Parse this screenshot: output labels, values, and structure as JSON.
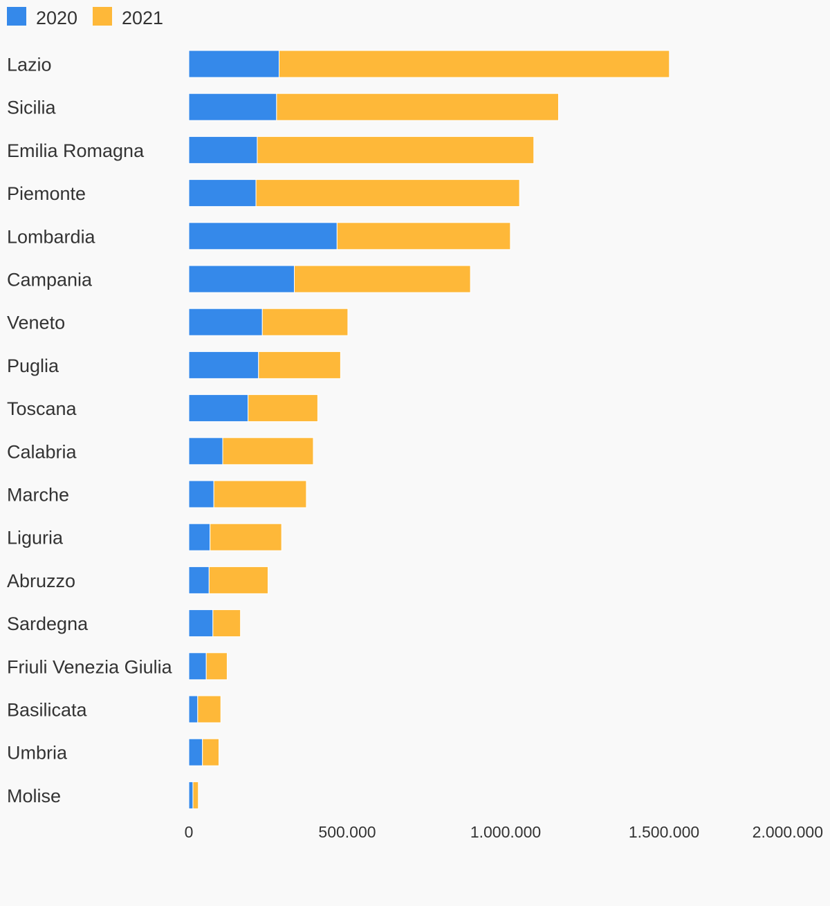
{
  "chart_data": {
    "type": "bar",
    "orientation": "horizontal",
    "stacked": true,
    "title": "",
    "xlabel": "",
    "ylabel": "",
    "legend_position": "top-left",
    "grid": false,
    "xlim": [
      0,
      2000000
    ],
    "ticks": [
      {
        "value": 0,
        "label": "0"
      },
      {
        "value": 500000,
        "label": "500.000"
      },
      {
        "value": 1000000,
        "label": "1.000.000"
      },
      {
        "value": 1500000,
        "label": "1.500.000"
      },
      {
        "value": 2000000,
        "label": "2.000.000"
      }
    ],
    "categories": [
      "Lazio",
      "Sicilia",
      "Emilia Romagna",
      "Piemonte",
      "Lombardia",
      "Campania",
      "Veneto",
      "Puglia",
      "Toscana",
      "Calabria",
      "Marche",
      "Liguria",
      "Abruzzo",
      "Sardegna",
      "Friuli Venezia Giulia",
      "Basilicata",
      "Umbria",
      "Molise"
    ],
    "series": [
      {
        "name": "2020",
        "color": "#3589ea",
        "values": [
          285000,
          277000,
          216000,
          212000,
          468000,
          333000,
          232000,
          220000,
          187000,
          107000,
          79000,
          67000,
          64000,
          76000,
          55000,
          28000,
          43000,
          13000
        ]
      },
      {
        "name": "2021",
        "color": "#feb839",
        "values": [
          1232000,
          890000,
          873000,
          832000,
          547000,
          556000,
          270000,
          259000,
          220000,
          286000,
          292000,
          226000,
          186000,
          87000,
          66000,
          73000,
          52000,
          17000
        ]
      }
    ]
  }
}
